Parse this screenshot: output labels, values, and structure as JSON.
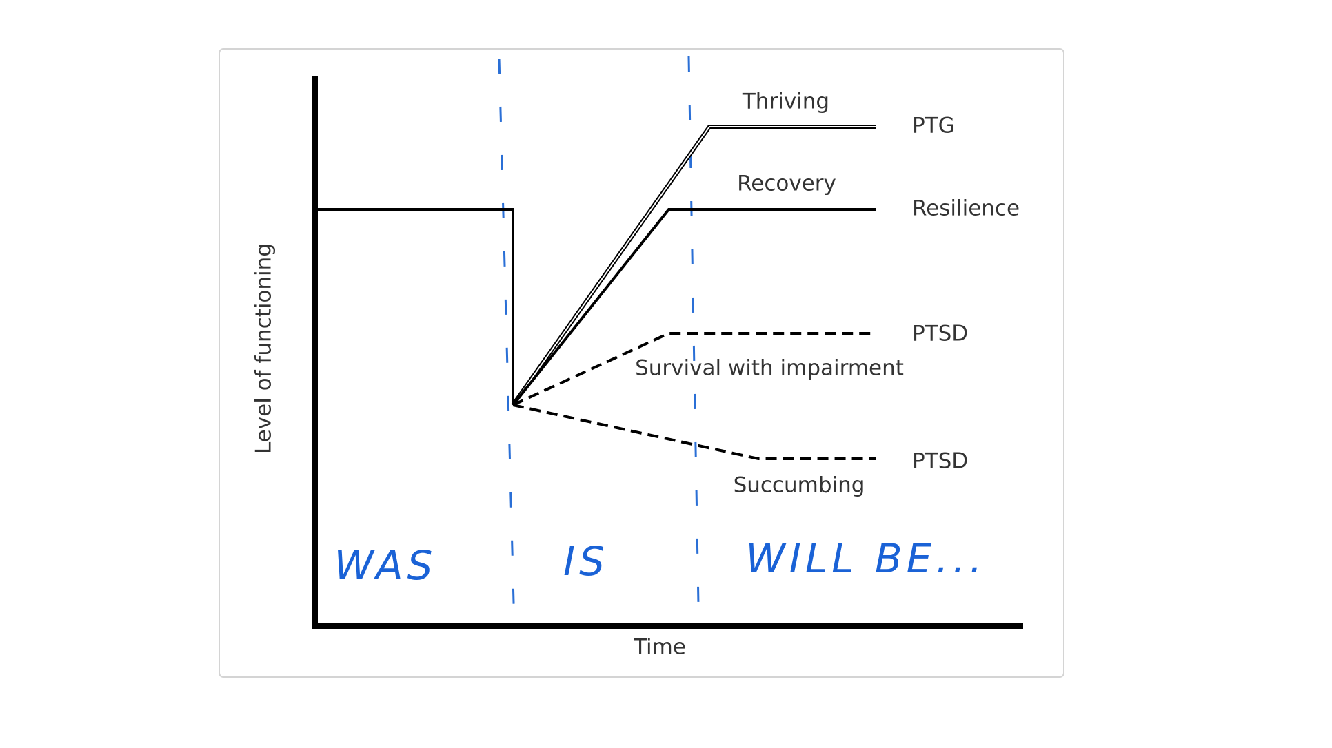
{
  "axes": {
    "y_label": "Level of functioning",
    "x_label": "Time"
  },
  "trajectories": [
    {
      "label": "Thriving",
      "outcome": "PTG"
    },
    {
      "label": "Recovery",
      "outcome": "Resilience"
    },
    {
      "label": "Survival with impairment",
      "outcome": "PTSD"
    },
    {
      "label": "Succumbing",
      "outcome": "PTSD"
    }
  ],
  "phases": [
    "WAS",
    "IS",
    "WILL BE..."
  ]
}
